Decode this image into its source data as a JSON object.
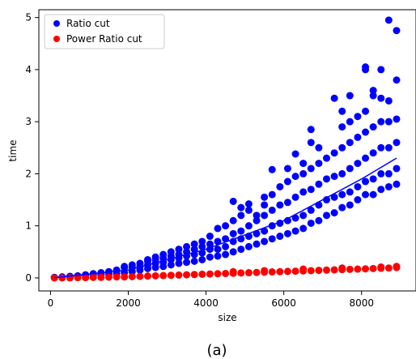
{
  "caption": "(a)",
  "chart_data": {
    "type": "scatter",
    "title": "",
    "xlabel": "size",
    "ylabel": "time",
    "xlim": [
      -300,
      9400
    ],
    "ylim": [
      -0.25,
      5.15
    ],
    "xticks": [
      0,
      2000,
      4000,
      6000,
      8000
    ],
    "yticks": [
      0,
      1,
      2,
      3,
      4,
      5
    ],
    "xtick_labels": [
      "0",
      "2000",
      "4000",
      "6000",
      "8000"
    ],
    "ytick_labels": [
      "0",
      "1",
      "2",
      "3",
      "4",
      "5"
    ],
    "grid": false,
    "legend": {
      "placement": "top-left"
    },
    "series": [
      {
        "name": "Ratio cut",
        "color": "#0000ff",
        "trend_line": [
          [
            100,
            0.005
          ],
          [
            2000,
            0.15
          ],
          [
            4000,
            0.55
          ],
          [
            6000,
            1.1
          ],
          [
            8000,
            1.9
          ],
          [
            8900,
            2.3
          ]
        ],
        "points": [
          [
            100,
            0.005
          ],
          [
            100,
            0.01
          ],
          [
            300,
            0.01
          ],
          [
            300,
            0.02
          ],
          [
            500,
            0.02
          ],
          [
            500,
            0.03
          ],
          [
            700,
            0.03
          ],
          [
            700,
            0.04
          ],
          [
            900,
            0.04
          ],
          [
            900,
            0.06
          ],
          [
            1100,
            0.05
          ],
          [
            1100,
            0.08
          ],
          [
            1300,
            0.06
          ],
          [
            1300,
            0.1
          ],
          [
            1500,
            0.07
          ],
          [
            1500,
            0.12
          ],
          [
            1700,
            0.08
          ],
          [
            1700,
            0.15
          ],
          [
            1900,
            0.1
          ],
          [
            1900,
            0.2
          ],
          [
            1900,
            0.22
          ],
          [
            2100,
            0.12
          ],
          [
            2100,
            0.2
          ],
          [
            2100,
            0.25
          ],
          [
            2300,
            0.15
          ],
          [
            2300,
            0.22
          ],
          [
            2300,
            0.28
          ],
          [
            2500,
            0.18
          ],
          [
            2500,
            0.25
          ],
          [
            2500,
            0.32
          ],
          [
            2500,
            0.35
          ],
          [
            2700,
            0.2
          ],
          [
            2700,
            0.28
          ],
          [
            2700,
            0.35
          ],
          [
            2700,
            0.4
          ],
          [
            2900,
            0.22
          ],
          [
            2900,
            0.3
          ],
          [
            2900,
            0.38
          ],
          [
            2900,
            0.45
          ],
          [
            3100,
            0.25
          ],
          [
            3100,
            0.35
          ],
          [
            3100,
            0.42
          ],
          [
            3100,
            0.5
          ],
          [
            3300,
            0.28
          ],
          [
            3300,
            0.38
          ],
          [
            3300,
            0.45
          ],
          [
            3300,
            0.55
          ],
          [
            3500,
            0.3
          ],
          [
            3500,
            0.42
          ],
          [
            3500,
            0.5
          ],
          [
            3500,
            0.6
          ],
          [
            3700,
            0.32
          ],
          [
            3700,
            0.45
          ],
          [
            3700,
            0.55
          ],
          [
            3700,
            0.65
          ],
          [
            3900,
            0.35
          ],
          [
            3900,
            0.48
          ],
          [
            3900,
            0.6
          ],
          [
            3900,
            0.7
          ],
          [
            4100,
            0.4
          ],
          [
            4100,
            0.55
          ],
          [
            4100,
            0.65
          ],
          [
            4100,
            0.8
          ],
          [
            4300,
            0.42
          ],
          [
            4300,
            0.55
          ],
          [
            4300,
            0.7
          ],
          [
            4300,
            0.95
          ],
          [
            4500,
            0.45
          ],
          [
            4500,
            0.6
          ],
          [
            4500,
            0.75
          ],
          [
            4500,
            1.0
          ],
          [
            4700,
            0.5
          ],
          [
            4700,
            0.7
          ],
          [
            4700,
            0.85
          ],
          [
            4700,
            1.1
          ],
          [
            4700,
            1.47
          ],
          [
            4900,
            0.55
          ],
          [
            4900,
            0.75
          ],
          [
            4900,
            0.9
          ],
          [
            4900,
            1.2
          ],
          [
            4900,
            1.35
          ],
          [
            5100,
            0.6
          ],
          [
            5100,
            0.8
          ],
          [
            5100,
            1.0
          ],
          [
            5100,
            1.3
          ],
          [
            5100,
            1.42
          ],
          [
            5300,
            0.65
          ],
          [
            5300,
            0.85
          ],
          [
            5300,
            1.1
          ],
          [
            5300,
            1.2
          ],
          [
            5500,
            0.7
          ],
          [
            5500,
            0.9
          ],
          [
            5500,
            1.2
          ],
          [
            5500,
            1.4
          ],
          [
            5500,
            1.55
          ],
          [
            5700,
            0.75
          ],
          [
            5700,
            1.0
          ],
          [
            5700,
            1.3
          ],
          [
            5700,
            1.6
          ],
          [
            5700,
            2.08
          ],
          [
            5900,
            0.8
          ],
          [
            5900,
            1.05
          ],
          [
            5900,
            1.4
          ],
          [
            5900,
            1.75
          ],
          [
            6100,
            0.85
          ],
          [
            6100,
            1.1
          ],
          [
            6100,
            1.45
          ],
          [
            6100,
            1.85
          ],
          [
            6100,
            2.1
          ],
          [
            6300,
            0.9
          ],
          [
            6300,
            1.15
          ],
          [
            6300,
            1.55
          ],
          [
            6300,
            1.95
          ],
          [
            6300,
            2.38
          ],
          [
            6500,
            0.95
          ],
          [
            6500,
            1.2
          ],
          [
            6500,
            1.65
          ],
          [
            6500,
            2.0
          ],
          [
            6500,
            2.2
          ],
          [
            6700,
            1.05
          ],
          [
            6700,
            1.3
          ],
          [
            6700,
            1.7
          ],
          [
            6700,
            2.1
          ],
          [
            6700,
            2.6
          ],
          [
            6700,
            2.85
          ],
          [
            6900,
            1.1
          ],
          [
            6900,
            1.4
          ],
          [
            6900,
            1.8
          ],
          [
            6900,
            2.2
          ],
          [
            6900,
            2.5
          ],
          [
            7100,
            1.2
          ],
          [
            7100,
            1.5
          ],
          [
            7100,
            1.9
          ],
          [
            7100,
            2.3
          ],
          [
            7300,
            1.25
          ],
          [
            7300,
            1.55
          ],
          [
            7300,
            1.95
          ],
          [
            7300,
            2.4
          ],
          [
            7300,
            3.45
          ],
          [
            7500,
            1.35
          ],
          [
            7500,
            1.6
          ],
          [
            7500,
            2.0
          ],
          [
            7500,
            2.5
          ],
          [
            7500,
            2.9
          ],
          [
            7500,
            3.2
          ],
          [
            7700,
            1.4
          ],
          [
            7700,
            1.65
          ],
          [
            7700,
            2.1
          ],
          [
            7700,
            2.6
          ],
          [
            7700,
            3.0
          ],
          [
            7700,
            3.5
          ],
          [
            7900,
            1.5
          ],
          [
            7900,
            1.75
          ],
          [
            7900,
            2.2
          ],
          [
            7900,
            2.7
          ],
          [
            7900,
            3.1
          ],
          [
            8100,
            1.6
          ],
          [
            8100,
            1.85
          ],
          [
            8100,
            2.3
          ],
          [
            8100,
            2.8
          ],
          [
            8100,
            3.2
          ],
          [
            8100,
            4.0
          ],
          [
            8100,
            4.05
          ],
          [
            8300,
            1.6
          ],
          [
            8300,
            1.9
          ],
          [
            8300,
            2.4
          ],
          [
            8300,
            2.9
          ],
          [
            8300,
            3.5
          ],
          [
            8300,
            3.6
          ],
          [
            8500,
            1.7
          ],
          [
            8500,
            2.0
          ],
          [
            8500,
            2.5
          ],
          [
            8500,
            3.0
          ],
          [
            8500,
            3.45
          ],
          [
            8500,
            4.0
          ],
          [
            8700,
            1.75
          ],
          [
            8700,
            2.0
          ],
          [
            8700,
            2.5
          ],
          [
            8700,
            3.0
          ],
          [
            8700,
            3.4
          ],
          [
            8700,
            4.95
          ],
          [
            8900,
            1.8
          ],
          [
            8900,
            2.1
          ],
          [
            8900,
            2.6
          ],
          [
            8900,
            3.05
          ],
          [
            8900,
            3.8
          ],
          [
            8900,
            4.75
          ]
        ]
      },
      {
        "name": "Power Ratio cut",
        "color": "#ff0000",
        "points": [
          [
            100,
            0.0
          ],
          [
            300,
            0.0
          ],
          [
            500,
            0.0
          ],
          [
            700,
            0.005
          ],
          [
            900,
            0.005
          ],
          [
            1100,
            0.01
          ],
          [
            1300,
            0.01
          ],
          [
            1500,
            0.015
          ],
          [
            1700,
            0.02
          ],
          [
            1900,
            0.02
          ],
          [
            2100,
            0.025
          ],
          [
            2300,
            0.03
          ],
          [
            2500,
            0.035
          ],
          [
            2700,
            0.04
          ],
          [
            2900,
            0.045
          ],
          [
            3100,
            0.05
          ],
          [
            3300,
            0.055
          ],
          [
            3500,
            0.06
          ],
          [
            3700,
            0.065
          ],
          [
            3900,
            0.07
          ],
          [
            4100,
            0.075
          ],
          [
            4300,
            0.08
          ],
          [
            4500,
            0.085
          ],
          [
            4700,
            0.09
          ],
          [
            4900,
            0.095
          ],
          [
            5100,
            0.1
          ],
          [
            5300,
            0.105
          ],
          [
            5500,
            0.11
          ],
          [
            5700,
            0.115
          ],
          [
            5900,
            0.12
          ],
          [
            6100,
            0.125
          ],
          [
            6300,
            0.13
          ],
          [
            6500,
            0.135
          ],
          [
            6700,
            0.14
          ],
          [
            6900,
            0.145
          ],
          [
            7100,
            0.15
          ],
          [
            7300,
            0.155
          ],
          [
            7500,
            0.16
          ],
          [
            7700,
            0.165
          ],
          [
            7900,
            0.17
          ],
          [
            8100,
            0.175
          ],
          [
            8300,
            0.18
          ],
          [
            8500,
            0.185
          ],
          [
            8700,
            0.19
          ],
          [
            8900,
            0.2
          ],
          [
            4700,
            0.12
          ],
          [
            5500,
            0.14
          ],
          [
            6500,
            0.17
          ],
          [
            7500,
            0.19
          ],
          [
            8500,
            0.21
          ],
          [
            8900,
            0.22
          ]
        ]
      }
    ]
  }
}
